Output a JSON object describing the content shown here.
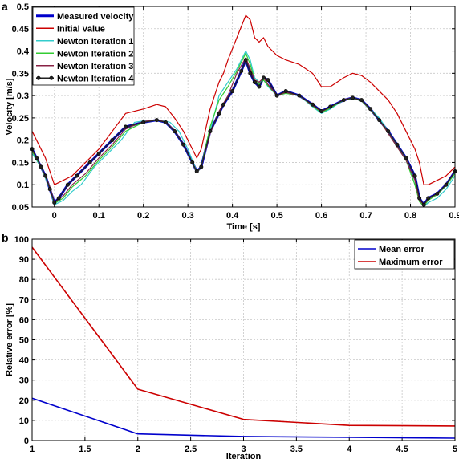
{
  "chart_data": [
    {
      "panel": "a",
      "type": "line",
      "xlabel": "Time [s]",
      "ylabel": "Velocity [m/s]",
      "xlim": [
        -0.05,
        0.9
      ],
      "ylim": [
        0.05,
        0.5
      ],
      "xticks": [
        0,
        0.1,
        0.2,
        0.3,
        0.4,
        0.5,
        0.6,
        0.7,
        0.8,
        0.9
      ],
      "yticks": [
        0.05,
        0.1,
        0.15,
        0.2,
        0.25,
        0.3,
        0.35,
        0.4,
        0.45,
        0.5
      ],
      "grid": true,
      "legend_position": "top-left",
      "series": [
        {
          "name": "Measured velocity",
          "color": "#0000cc",
          "x": [
            -0.05,
            -0.04,
            -0.03,
            -0.02,
            -0.01,
            0,
            0.01,
            0.03,
            0.05,
            0.08,
            0.1,
            0.13,
            0.16,
            0.2,
            0.23,
            0.25,
            0.27,
            0.29,
            0.31,
            0.32,
            0.33,
            0.35,
            0.37,
            0.38,
            0.4,
            0.42,
            0.43,
            0.44,
            0.45,
            0.46,
            0.47,
            0.48,
            0.5,
            0.52,
            0.55,
            0.58,
            0.6,
            0.62,
            0.65,
            0.67,
            0.69,
            0.71,
            0.73,
            0.75,
            0.77,
            0.79,
            0.81,
            0.82,
            0.83,
            0.84,
            0.86,
            0.88,
            0.9
          ],
          "y": [
            0.18,
            0.16,
            0.14,
            0.12,
            0.09,
            0.06,
            0.07,
            0.1,
            0.12,
            0.15,
            0.17,
            0.2,
            0.23,
            0.24,
            0.245,
            0.24,
            0.22,
            0.19,
            0.15,
            0.13,
            0.14,
            0.22,
            0.26,
            0.28,
            0.31,
            0.355,
            0.38,
            0.35,
            0.33,
            0.32,
            0.34,
            0.335,
            0.3,
            0.31,
            0.3,
            0.28,
            0.265,
            0.275,
            0.29,
            0.295,
            0.29,
            0.27,
            0.245,
            0.22,
            0.19,
            0.16,
            0.12,
            0.07,
            0.055,
            0.07,
            0.08,
            0.1,
            0.13
          ]
        },
        {
          "name": "Initial value",
          "color": "#cc0000",
          "x": [
            -0.05,
            -0.04,
            -0.02,
            0,
            0.02,
            0.04,
            0.06,
            0.08,
            0.1,
            0.13,
            0.16,
            0.2,
            0.23,
            0.25,
            0.27,
            0.29,
            0.31,
            0.32,
            0.33,
            0.35,
            0.37,
            0.38,
            0.39,
            0.41,
            0.43,
            0.44,
            0.45,
            0.46,
            0.47,
            0.48,
            0.5,
            0.52,
            0.55,
            0.58,
            0.6,
            0.62,
            0.65,
            0.67,
            0.69,
            0.71,
            0.73,
            0.75,
            0.77,
            0.79,
            0.81,
            0.82,
            0.83,
            0.84,
            0.86,
            0.88,
            0.9
          ],
          "y": [
            0.22,
            0.2,
            0.16,
            0.1,
            0.11,
            0.12,
            0.14,
            0.16,
            0.18,
            0.22,
            0.26,
            0.27,
            0.28,
            0.275,
            0.25,
            0.22,
            0.18,
            0.16,
            0.18,
            0.27,
            0.33,
            0.35,
            0.38,
            0.43,
            0.48,
            0.47,
            0.43,
            0.42,
            0.43,
            0.41,
            0.39,
            0.38,
            0.37,
            0.35,
            0.32,
            0.32,
            0.34,
            0.35,
            0.345,
            0.33,
            0.31,
            0.29,
            0.26,
            0.22,
            0.18,
            0.15,
            0.1,
            0.1,
            0.11,
            0.12,
            0.14
          ]
        },
        {
          "name": "Newton Iteration 1",
          "color": "#33cccc",
          "x": [
            -0.05,
            -0.03,
            -0.01,
            0,
            0.02,
            0.04,
            0.06,
            0.09,
            0.12,
            0.15,
            0.18,
            0.21,
            0.24,
            0.26,
            0.28,
            0.3,
            0.32,
            0.33,
            0.35,
            0.37,
            0.39,
            0.41,
            0.43,
            0.44,
            0.45,
            0.46,
            0.47,
            0.48,
            0.5,
            0.52,
            0.55,
            0.58,
            0.6,
            0.62,
            0.65,
            0.67,
            0.69,
            0.71,
            0.73,
            0.75,
            0.77,
            0.79,
            0.81,
            0.82,
            0.83,
            0.84,
            0.86,
            0.88,
            0.9
          ],
          "y": [
            0.17,
            0.14,
            0.09,
            0.055,
            0.065,
            0.085,
            0.1,
            0.14,
            0.17,
            0.2,
            0.24,
            0.245,
            0.245,
            0.24,
            0.22,
            0.18,
            0.13,
            0.14,
            0.22,
            0.3,
            0.33,
            0.36,
            0.4,
            0.38,
            0.34,
            0.33,
            0.335,
            0.32,
            0.3,
            0.305,
            0.3,
            0.275,
            0.26,
            0.27,
            0.29,
            0.295,
            0.29,
            0.27,
            0.25,
            0.22,
            0.19,
            0.16,
            0.1,
            0.065,
            0.05,
            0.06,
            0.07,
            0.09,
            0.12
          ]
        },
        {
          "name": "Newton Iteration 2",
          "color": "#33cc33",
          "x": [
            -0.05,
            -0.03,
            -0.01,
            0,
            0.02,
            0.04,
            0.07,
            0.1,
            0.13,
            0.16,
            0.2,
            0.23,
            0.25,
            0.27,
            0.29,
            0.31,
            0.32,
            0.33,
            0.35,
            0.37,
            0.39,
            0.41,
            0.43,
            0.44,
            0.45,
            0.46,
            0.47,
            0.48,
            0.5,
            0.52,
            0.55,
            0.58,
            0.6,
            0.62,
            0.65,
            0.67,
            0.69,
            0.71,
            0.73,
            0.75,
            0.77,
            0.79,
            0.81,
            0.82,
            0.83,
            0.84,
            0.86,
            0.88,
            0.9
          ],
          "y": [
            0.175,
            0.14,
            0.095,
            0.058,
            0.07,
            0.095,
            0.12,
            0.155,
            0.185,
            0.22,
            0.24,
            0.245,
            0.24,
            0.22,
            0.19,
            0.15,
            0.127,
            0.14,
            0.23,
            0.29,
            0.32,
            0.355,
            0.395,
            0.37,
            0.335,
            0.325,
            0.335,
            0.322,
            0.3,
            0.305,
            0.3,
            0.277,
            0.262,
            0.272,
            0.29,
            0.294,
            0.288,
            0.268,
            0.245,
            0.215,
            0.185,
            0.155,
            0.1,
            0.062,
            0.052,
            0.065,
            0.078,
            0.098,
            0.125
          ]
        },
        {
          "name": "Newton Iteration 3",
          "color": "#882244",
          "x": [
            -0.05,
            -0.03,
            -0.01,
            0,
            0.02,
            0.04,
            0.07,
            0.1,
            0.13,
            0.16,
            0.2,
            0.23,
            0.25,
            0.27,
            0.29,
            0.31,
            0.32,
            0.33,
            0.35,
            0.37,
            0.39,
            0.41,
            0.43,
            0.44,
            0.45,
            0.46,
            0.47,
            0.48,
            0.5,
            0.52,
            0.55,
            0.58,
            0.6,
            0.62,
            0.65,
            0.67,
            0.69,
            0.71,
            0.73,
            0.75,
            0.77,
            0.79,
            0.81,
            0.82,
            0.83,
            0.84,
            0.86,
            0.88,
            0.9
          ],
          "y": [
            0.178,
            0.142,
            0.095,
            0.06,
            0.075,
            0.1,
            0.125,
            0.16,
            0.19,
            0.225,
            0.242,
            0.246,
            0.241,
            0.222,
            0.19,
            0.15,
            0.128,
            0.14,
            0.215,
            0.265,
            0.3,
            0.35,
            0.385,
            0.36,
            0.335,
            0.33,
            0.34,
            0.325,
            0.3,
            0.307,
            0.3,
            0.278,
            0.264,
            0.274,
            0.291,
            0.295,
            0.289,
            0.269,
            0.245,
            0.215,
            0.185,
            0.155,
            0.11,
            0.065,
            0.055,
            0.068,
            0.08,
            0.1,
            0.13
          ]
        },
        {
          "name": "Newton Iteration 4",
          "color": "#222222",
          "markers": true,
          "x": [
            -0.05,
            -0.04,
            -0.03,
            -0.02,
            -0.01,
            0,
            0.01,
            0.03,
            0.05,
            0.08,
            0.1,
            0.13,
            0.16,
            0.2,
            0.23,
            0.25,
            0.27,
            0.29,
            0.31,
            0.32,
            0.33,
            0.35,
            0.37,
            0.38,
            0.4,
            0.42,
            0.43,
            0.44,
            0.45,
            0.46,
            0.47,
            0.48,
            0.5,
            0.52,
            0.55,
            0.58,
            0.6,
            0.62,
            0.65,
            0.67,
            0.69,
            0.71,
            0.73,
            0.75,
            0.77,
            0.79,
            0.81,
            0.82,
            0.83,
            0.84,
            0.86,
            0.88,
            0.9
          ],
          "y": [
            0.18,
            0.16,
            0.14,
            0.12,
            0.09,
            0.06,
            0.07,
            0.1,
            0.12,
            0.15,
            0.17,
            0.2,
            0.23,
            0.24,
            0.245,
            0.24,
            0.22,
            0.19,
            0.15,
            0.13,
            0.14,
            0.22,
            0.26,
            0.28,
            0.31,
            0.355,
            0.38,
            0.35,
            0.33,
            0.32,
            0.34,
            0.335,
            0.3,
            0.31,
            0.3,
            0.28,
            0.265,
            0.275,
            0.29,
            0.295,
            0.29,
            0.27,
            0.245,
            0.22,
            0.19,
            0.16,
            0.12,
            0.07,
            0.055,
            0.07,
            0.08,
            0.1,
            0.13
          ]
        }
      ]
    },
    {
      "panel": "b",
      "type": "line",
      "xlabel": "Iteration",
      "ylabel": "Relative error [%]",
      "xlim": [
        1,
        5
      ],
      "ylim": [
        0,
        100
      ],
      "xticks": [
        1,
        1.5,
        2,
        2.5,
        3,
        3.5,
        4,
        4.5,
        5
      ],
      "yticks": [
        0,
        10,
        20,
        30,
        40,
        50,
        60,
        70,
        80,
        90,
        100
      ],
      "grid": true,
      "legend_position": "top-right",
      "series": [
        {
          "name": "Mean error",
          "color": "#0000cc",
          "x": [
            1,
            2,
            3,
            4,
            5
          ],
          "y": [
            21,
            3.3,
            2,
            1.6,
            1.2
          ]
        },
        {
          "name": "Maximum error",
          "color": "#cc0000",
          "x": [
            1,
            2,
            3,
            4,
            5
          ],
          "y": [
            96,
            25.5,
            10.5,
            7.5,
            7.2
          ]
        }
      ]
    }
  ]
}
